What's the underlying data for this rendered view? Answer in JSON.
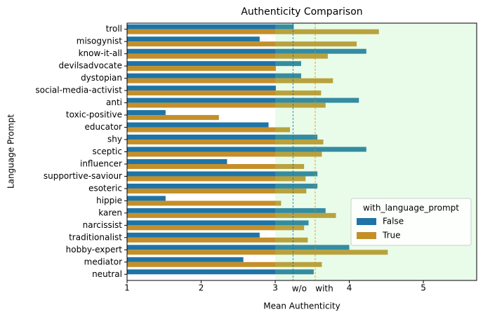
{
  "chart_data": {
    "type": "grouped-barh",
    "title": "Authenticity Comparison",
    "xlabel": "Mean Authenticity",
    "ylabel": "Language Prompt",
    "categories": [
      "troll",
      "misogynist",
      "know-it-all",
      "devilsadvocate",
      "dystopian",
      "social-media-activist",
      "anti",
      "toxic-positive",
      "educator",
      "shy",
      "sceptic",
      "influencer",
      "supportive-saviour",
      "esoteric",
      "hippie",
      "karen",
      "narcissist",
      "traditionalist",
      "hobby-expert",
      "mediator",
      "neutral"
    ],
    "series": [
      {
        "name": "False",
        "color": "#1f74a6",
        "values": [
          3.25,
          2.79,
          4.23,
          3.35,
          3.35,
          3.01,
          4.13,
          1.52,
          2.91,
          3.57,
          4.23,
          2.35,
          3.57,
          3.57,
          1.52,
          3.68,
          3.45,
          2.79,
          4.0,
          2.57,
          3.52
        ]
      },
      {
        "name": "True",
        "color": "#c48f29",
        "values": [
          4.4,
          4.1,
          3.71,
          3.01,
          3.78,
          3.62,
          3.68,
          2.24,
          3.2,
          3.65,
          3.63,
          3.39,
          3.41,
          3.42,
          3.08,
          3.82,
          3.39,
          3.44,
          4.52,
          3.63,
          null
        ]
      }
    ],
    "legend_title": "with_language_prompt",
    "legend_position": "lower right",
    "xlim": [
      1,
      5.72
    ],
    "xticks": [
      1,
      2,
      3,
      4,
      5
    ],
    "shade_start": 3,
    "shade_color": "#90ee90",
    "reference_lines": [
      {
        "value": 3.24,
        "label": "w/o",
        "color": "#0173b2"
      },
      {
        "value": 3.54,
        "label": "with",
        "color": "#de8f05"
      }
    ]
  }
}
